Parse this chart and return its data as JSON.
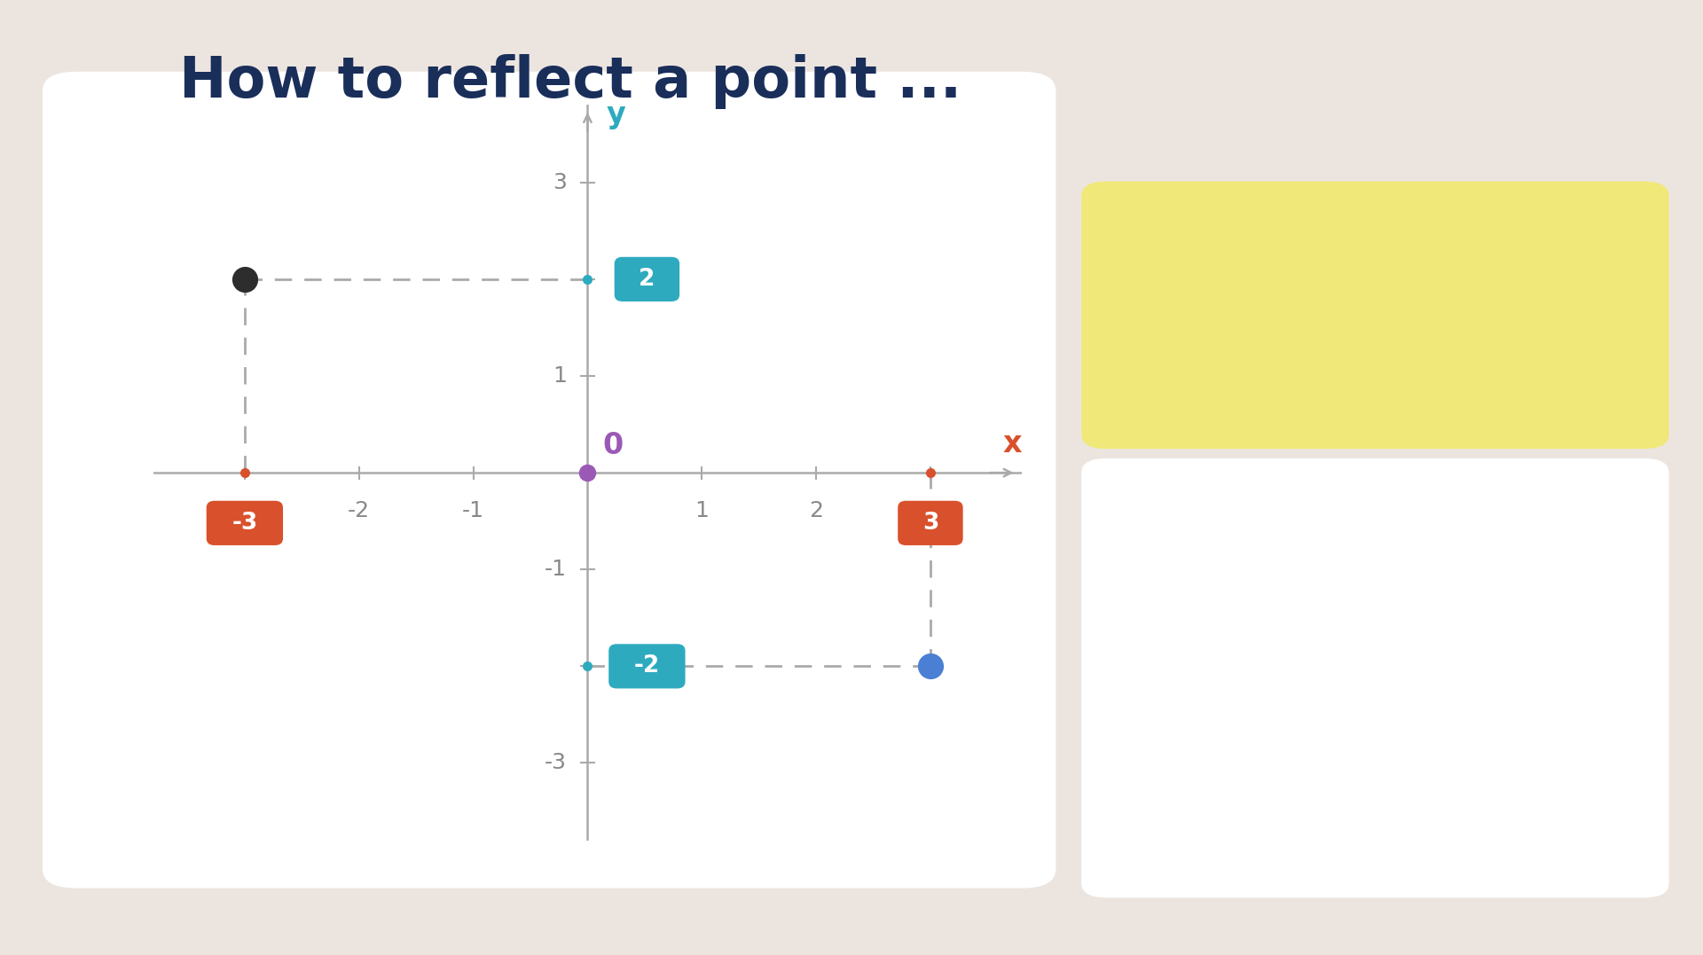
{
  "bg_color": "#ece5df",
  "title": "How to reflect a point ...",
  "title_color": "#1a2e5a",
  "title_fontsize": 46,
  "grid_bg": "#ffffff",
  "axis_color": "#aaaaaa",
  "point_P": [
    -3,
    2
  ],
  "point_Pprime": [
    3,
    -2
  ],
  "origin_color": "#9b59b6",
  "x_label_color": "#d9512c",
  "y_label_color": "#2eaabf",
  "dashed_color": "#aaaaaa",
  "point_P_color": "#2d2d2d",
  "point_Pprime_color": "#4a7fd4",
  "tag_neg3_color": "#d9512c",
  "tag_2_color": "#2eaabf",
  "tag_3_color": "#d9512c",
  "tag_neg2_color": "#2eaabf",
  "box_yellow_bg": "#f0e878",
  "box_white_bg": "#ffffff",
  "reflect_title_color": "#1a2e5a",
  "origin_word_color": "#9b59b6",
  "x_sign_color": "#d9512c",
  "y_sign_color": "#2eaabf",
  "P_label_color": "#1a2e5a",
  "Pprime_label_color": "#4a7fd4",
  "tick_label_color": "#888888"
}
